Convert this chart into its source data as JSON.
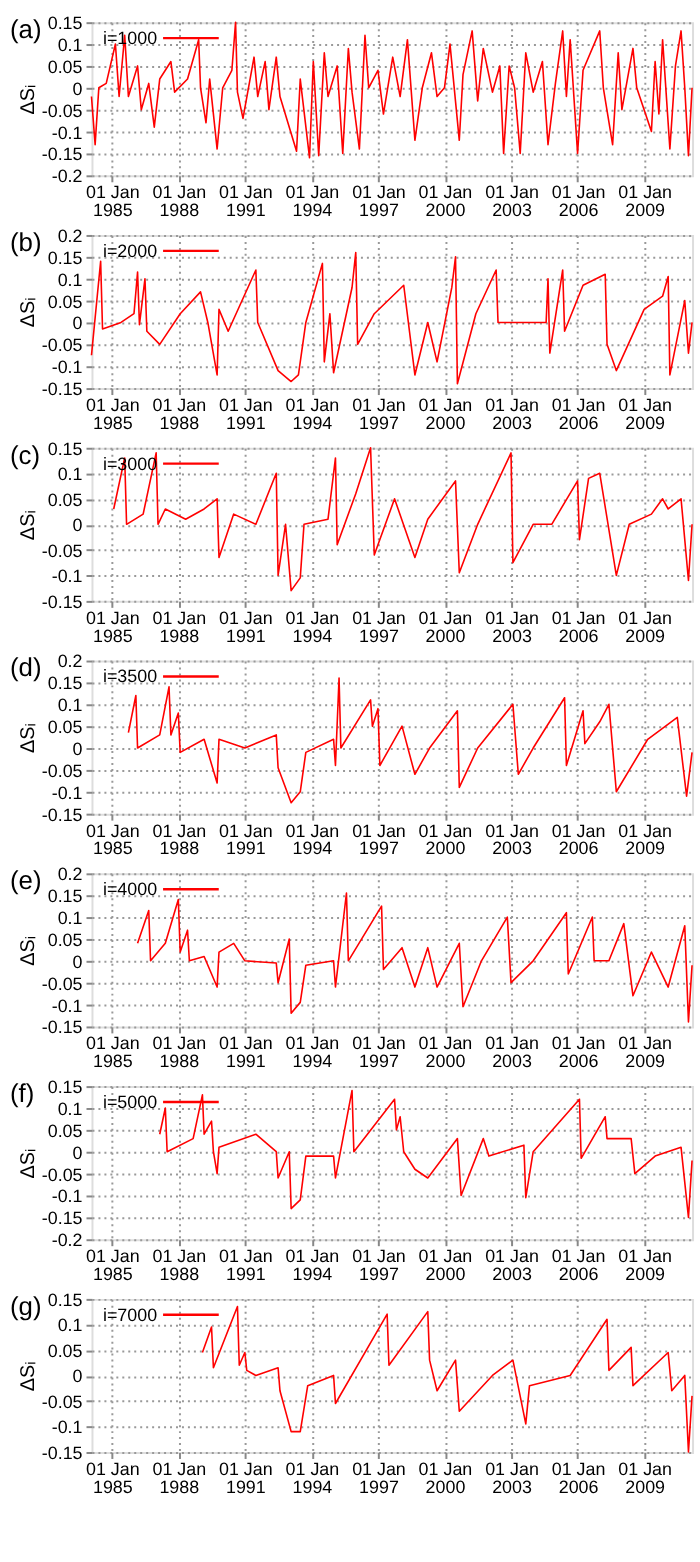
{
  "chart_data": [
    {
      "type": "line",
      "title": "(a)",
      "ylabel": "ΔSᵢ",
      "legend": "top left",
      "grid": true,
      "xlim": [
        "1984-02-01",
        "2011-03-01"
      ],
      "ylim": [
        -0.2,
        0.15
      ],
      "yticks": [
        -0.2,
        -0.15,
        -0.1,
        -0.05,
        0,
        0.05,
        0.1,
        0.15
      ],
      "xticks": [
        {
          "value": "1985-01-01",
          "label": "01 Jan\n1985"
        },
        {
          "value": "1988-01-01",
          "label": "01 Jan\n1988"
        },
        {
          "value": "1991-01-01",
          "label": "01 Jan\n1991"
        },
        {
          "value": "1994-01-01",
          "label": "01 Jan\n1994"
        },
        {
          "value": "1997-01-01",
          "label": "01 Jan\n1997"
        },
        {
          "value": "2000-01-01",
          "label": "01 Jan\n2000"
        },
        {
          "value": "2003-01-01",
          "label": "01 Jan\n2003"
        },
        {
          "value": "2006-01-01",
          "label": "01 Jan\n2006"
        },
        {
          "value": "2009-01-01",
          "label": "01 Jan\n2009"
        }
      ],
      "series": [
        {
          "name": "i=1000",
          "color": "#ff0000",
          "x": [
            "1984-02",
            "1984-04",
            "1984-06",
            "1984-10",
            "1985-03",
            "1985-05",
            "1985-08",
            "1985-10",
            "1986-03",
            "1986-05",
            "1986-09",
            "1986-12",
            "1987-03",
            "1987-09",
            "1987-11",
            "1988-06",
            "1988-12",
            "1989-01",
            "1989-04",
            "1989-06",
            "1989-10",
            "1990-01",
            "1990-06",
            "1990-08",
            "1990-09",
            "1990-12",
            "1991-06",
            "1991-08",
            "1991-12",
            "1992-02",
            "1992-06",
            "1992-08",
            "1993-05",
            "1993-07",
            "1993-12",
            "1994-02",
            "1994-05",
            "1994-08",
            "1994-10",
            "1995-03",
            "1995-06",
            "1995-09",
            "1995-11",
            "1996-03",
            "1996-06",
            "1996-08",
            "1997-01",
            "1997-04",
            "1997-09",
            "1998-01",
            "1998-05",
            "1998-09",
            "1999-01",
            "1999-06",
            "1999-09",
            "2000-01",
            "2000-04",
            "2000-09",
            "2000-11",
            "2001-04",
            "2001-07",
            "2001-10",
            "2002-03",
            "2002-07",
            "2002-09",
            "2002-12",
            "2003-03",
            "2003-06",
            "2003-09",
            "2004-01",
            "2004-06",
            "2004-09",
            "2005-01",
            "2005-05",
            "2005-07",
            "2005-09",
            "2006-01",
            "2006-04",
            "2007-01",
            "2007-03",
            "2007-08",
            "2007-11",
            "2008-01",
            "2008-07",
            "2008-09",
            "2009-05",
            "2009-07",
            "2009-09",
            "2009-11",
            "2010-03",
            "2010-06",
            "2010-09",
            "2010-11",
            "2011-01",
            "2011-03"
          ],
          "values": [
            -0.02,
            -0.13,
            0.0,
            0.01,
            0.1,
            -0.02,
            0.12,
            -0.02,
            0.05,
            -0.05,
            0.01,
            -0.09,
            0.02,
            0.06,
            -0.01,
            0.02,
            0.11,
            0.0,
            -0.08,
            0.02,
            -0.14,
            0.0,
            0.04,
            0.15,
            -0.01,
            -0.07,
            0.07,
            -0.02,
            0.06,
            -0.05,
            0.07,
            -0.02,
            -0.145,
            0.02,
            -0.16,
            0.06,
            -0.155,
            0.08,
            -0.02,
            0.05,
            -0.15,
            0.09,
            -0.01,
            -0.14,
            0.12,
            0.0,
            0.04,
            -0.06,
            0.07,
            -0.02,
            0.11,
            -0.12,
            0.0,
            0.08,
            -0.02,
            0.0,
            0.1,
            -0.12,
            0.03,
            0.13,
            -0.03,
            0.09,
            -0.01,
            0.05,
            -0.15,
            0.05,
            0.0,
            -0.15,
            0.08,
            -0.01,
            0.06,
            -0.13,
            0.01,
            0.13,
            -0.02,
            0.11,
            -0.15,
            0.04,
            0.13,
            0.0,
            -0.13,
            0.08,
            -0.05,
            0.09,
            0.0,
            -0.1,
            0.06,
            -0.06,
            0.11,
            -0.14,
            0.05,
            0.13,
            0.0,
            -0.155,
            0.0
          ]
        }
      ]
    },
    {
      "type": "line",
      "title": "(b)",
      "ylabel": "ΔSᵢ",
      "legend": "top left",
      "grid": true,
      "xlim": [
        "1984-02-01",
        "2011-03-01"
      ],
      "ylim": [
        -0.15,
        0.2
      ],
      "yticks": [
        -0.15,
        -0.1,
        -0.05,
        0,
        0.05,
        0.1,
        0.15,
        0.2
      ],
      "xticks": [
        {
          "value": "1985-01-01",
          "label": "01 Jan\n1985"
        },
        {
          "value": "1988-01-01",
          "label": "01 Jan\n1988"
        },
        {
          "value": "1991-01-01",
          "label": "01 Jan\n1991"
        },
        {
          "value": "1994-01-01",
          "label": "01 Jan\n1994"
        },
        {
          "value": "1997-01-01",
          "label": "01 Jan\n1997"
        },
        {
          "value": "2000-01-01",
          "label": "01 Jan\n2000"
        },
        {
          "value": "2003-01-01",
          "label": "01 Jan\n2003"
        },
        {
          "value": "2006-01-01",
          "label": "01 Jan\n2006"
        },
        {
          "value": "2009-01-01",
          "label": "01 Jan\n2009"
        }
      ],
      "series": [
        {
          "name": "i=2000",
          "color": "#ff0000",
          "x": [
            "1984-02",
            "1984-07",
            "1984-08",
            "1985-06",
            "1986-01",
            "1986-03",
            "1986-04",
            "1986-07",
            "1986-08",
            "1987-03",
            "1988-02",
            "1989-01",
            "1989-05",
            "1989-10",
            "1989-11",
            "1990-04",
            "1991-07",
            "1991-08",
            "1992-07",
            "1993-02",
            "1993-06",
            "1993-10",
            "1994-07",
            "1994-08",
            "1994-11",
            "1995-01",
            "1995-11",
            "1996-01",
            "1996-02",
            "1996-11",
            "1998-03",
            "1998-09",
            "1999-04",
            "1999-09",
            "2000-05",
            "2000-07",
            "2000-08",
            "2001-06",
            "2002-05",
            "2002-06",
            "2004-08",
            "2004-09",
            "2004-10",
            "2005-05",
            "2005-06",
            "2006-04",
            "2007-04",
            "2007-05",
            "2007-10",
            "2009-01",
            "2009-11",
            "2010-02",
            "2010-03",
            "2010-11",
            "2011-01",
            "2011-03"
          ],
          "values": [
            -0.075,
            0.14,
            -0.015,
            0.0,
            0.02,
            0.115,
            -0.005,
            0.1,
            -0.02,
            -0.05,
            0.02,
            0.07,
            0.0,
            -0.12,
            0.03,
            -0.02,
            0.12,
            0.0,
            -0.11,
            -0.135,
            -0.12,
            0.0,
            0.135,
            -0.09,
            0.02,
            -0.115,
            0.08,
            0.16,
            -0.05,
            0.02,
            0.085,
            -0.12,
            0.0,
            -0.09,
            0.08,
            0.15,
            -0.14,
            0.02,
            0.12,
            0.0,
            0.0,
            0.1,
            -0.07,
            0.12,
            -0.02,
            0.085,
            0.11,
            -0.05,
            -0.11,
            0.03,
            0.06,
            0.105,
            -0.12,
            0.05,
            -0.07,
            0.0
          ]
        }
      ]
    },
    {
      "type": "line",
      "title": "(c)",
      "ylabel": "ΔSᵢ",
      "legend": "top left",
      "grid": true,
      "xlim": [
        "1984-02-01",
        "2011-03-01"
      ],
      "ylim": [
        -0.15,
        0.15
      ],
      "yticks": [
        -0.15,
        -0.1,
        -0.05,
        0,
        0.05,
        0.1,
        0.15
      ],
      "xticks": [
        {
          "value": "1985-01-01",
          "label": "01 Jan\n1985"
        },
        {
          "value": "1988-01-01",
          "label": "01 Jan\n1988"
        },
        {
          "value": "1991-01-01",
          "label": "01 Jan\n1991"
        },
        {
          "value": "1994-01-01",
          "label": "01 Jan\n1994"
        },
        {
          "value": "1997-01-01",
          "label": "01 Jan\n1997"
        },
        {
          "value": "2000-01-01",
          "label": "01 Jan\n2000"
        },
        {
          "value": "2003-01-01",
          "label": "01 Jan\n2003"
        },
        {
          "value": "2006-01-01",
          "label": "01 Jan\n2006"
        },
        {
          "value": "2009-01-01",
          "label": "01 Jan\n2009"
        }
      ],
      "series": [
        {
          "name": "i=3000",
          "color": "#ff0000",
          "x": [
            "1985-02",
            "1985-08",
            "1985-09",
            "1986-06",
            "1987-01",
            "1987-02",
            "1987-06",
            "1988-05",
            "1989-03",
            "1989-10",
            "1989-11",
            "1990-07",
            "1991-07",
            "1992-06",
            "1992-07",
            "1992-11",
            "1993-02",
            "1993-07",
            "1993-09",
            "1994-10",
            "1995-02",
            "1995-03",
            "1996-01",
            "1996-09",
            "1996-11",
            "1997-10",
            "1998-09",
            "1999-04",
            "2000-07",
            "2000-09",
            "2001-07",
            "2003-01",
            "2003-02",
            "2004-01",
            "2004-11",
            "2006-01",
            "2006-02",
            "2006-07",
            "2007-01",
            "2007-10",
            "2008-05",
            "2009-05",
            "2009-11",
            "2010-02",
            "2010-09",
            "2011-01",
            "2011-03"
          ],
          "values": [
            0.03,
            0.13,
            0.0,
            0.02,
            0.14,
            0.0,
            0.03,
            0.01,
            0.03,
            0.05,
            -0.065,
            0.02,
            0.0,
            0.1,
            -0.1,
            0.0,
            -0.13,
            -0.105,
            0.0,
            0.01,
            0.13,
            -0.04,
            0.06,
            0.15,
            -0.06,
            0.05,
            -0.065,
            0.01,
            0.085,
            -0.095,
            0.0,
            0.14,
            -0.075,
            0.0,
            0.0,
            0.085,
            -0.03,
            0.09,
            0.1,
            -0.1,
            0.0,
            0.02,
            0.05,
            0.03,
            0.05,
            -0.11,
            0.0
          ]
        }
      ]
    },
    {
      "type": "line",
      "title": "(d)",
      "ylabel": "ΔSᵢ",
      "legend": "top left",
      "grid": true,
      "xlim": [
        "1984-02-01",
        "2011-03-01"
      ],
      "ylim": [
        -0.15,
        0.2
      ],
      "yticks": [
        -0.15,
        -0.1,
        -0.05,
        0,
        0.05,
        0.1,
        0.15,
        0.2
      ],
      "xticks": [
        {
          "value": "1985-01-01",
          "label": "01 Jan\n1985"
        },
        {
          "value": "1988-01-01",
          "label": "01 Jan\n1988"
        },
        {
          "value": "1991-01-01",
          "label": "01 Jan\n1991"
        },
        {
          "value": "1994-01-01",
          "label": "01 Jan\n1994"
        },
        {
          "value": "1997-01-01",
          "label": "01 Jan\n1997"
        },
        {
          "value": "2000-01-01",
          "label": "01 Jan\n2000"
        },
        {
          "value": "2003-01-01",
          "label": "01 Jan\n2003"
        },
        {
          "value": "2006-01-01",
          "label": "01 Jan\n2006"
        },
        {
          "value": "2009-01-01",
          "label": "01 Jan\n2009"
        }
      ],
      "series": [
        {
          "name": "i=3500",
          "color": "#ff0000",
          "x": [
            "1985-10",
            "1986-02",
            "1986-03",
            "1987-03",
            "1987-08",
            "1987-09",
            "1988-01",
            "1988-02",
            "1989-03",
            "1989-10",
            "1989-11",
            "1991-01",
            "1992-06",
            "1992-07",
            "1993-02",
            "1993-07",
            "1993-10",
            "1995-01",
            "1995-02",
            "1995-04",
            "1995-05",
            "1996-09",
            "1996-10",
            "1997-01",
            "1997-02",
            "1998-02",
            "1998-09",
            "1999-05",
            "2000-08",
            "2000-09",
            "2001-07",
            "2003-02",
            "2003-05",
            "2004-01",
            "2005-06",
            "2005-07",
            "2006-04",
            "2006-05",
            "2007-01",
            "2007-06",
            "2007-10",
            "2009-03",
            "2010-07",
            "2010-12",
            "2011-03"
          ],
          "values": [
            0.035,
            0.12,
            0.0,
            0.03,
            0.14,
            0.03,
            0.08,
            -0.01,
            0.02,
            -0.08,
            0.02,
            0.0,
            0.03,
            -0.045,
            -0.125,
            -0.1,
            -0.01,
            0.02,
            -0.04,
            0.16,
            0.0,
            0.11,
            0.05,
            0.09,
            -0.04,
            0.05,
            -0.06,
            0.0,
            0.085,
            -0.09,
            0.0,
            0.1,
            -0.06,
            0.0,
            0.115,
            -0.04,
            0.085,
            0.01,
            0.06,
            0.1,
            -0.1,
            0.02,
            0.07,
            -0.11,
            -0.01
          ]
        }
      ]
    },
    {
      "type": "line",
      "title": "(e)",
      "ylabel": "ΔSᵢ",
      "legend": "top left",
      "grid": true,
      "xlim": [
        "1984-02-01",
        "2011-03-01"
      ],
      "ylim": [
        -0.15,
        0.2
      ],
      "yticks": [
        -0.15,
        -0.1,
        -0.05,
        0,
        0.05,
        0.1,
        0.15,
        0.2
      ],
      "xticks": [
        {
          "value": "1985-01-01",
          "label": "01 Jan\n1985"
        },
        {
          "value": "1988-01-01",
          "label": "01 Jan\n1988"
        },
        {
          "value": "1991-01-01",
          "label": "01 Jan\n1991"
        },
        {
          "value": "1994-01-01",
          "label": "01 Jan\n1994"
        },
        {
          "value": "1997-01-01",
          "label": "01 Jan\n1997"
        },
        {
          "value": "2000-01-01",
          "label": "01 Jan\n2000"
        },
        {
          "value": "2003-01-01",
          "label": "01 Jan\n2003"
        },
        {
          "value": "2006-01-01",
          "label": "01 Jan\n2006"
        },
        {
          "value": "2009-01-01",
          "label": "01 Jan\n2009"
        }
      ],
      "series": [
        {
          "name": "i=4000",
          "color": "#ff0000",
          "x": [
            "1986-03",
            "1986-09",
            "1986-10",
            "1987-06",
            "1988-01",
            "1988-02",
            "1988-06",
            "1988-07",
            "1989-03",
            "1989-10",
            "1989-11",
            "1990-07",
            "1991-01",
            "1992-06",
            "1992-07",
            "1993-01",
            "1993-02",
            "1993-07",
            "1993-10",
            "1995-01",
            "1995-02",
            "1995-08",
            "1995-09",
            "1997-03",
            "1997-04",
            "1998-02",
            "1998-09",
            "1999-04",
            "1999-09",
            "2000-09",
            "2000-11",
            "2001-09",
            "2002-11",
            "2003-01",
            "2004-01",
            "2005-07",
            "2005-08",
            "2006-09",
            "2006-10",
            "2007-06",
            "2008-02",
            "2008-07",
            "2009-05",
            "2010-02",
            "2010-11",
            "2011-01",
            "2011-03"
          ],
          "values": [
            0.04,
            0.115,
            0.0,
            0.04,
            0.14,
            0.02,
            0.07,
            0.0,
            0.01,
            -0.06,
            0.02,
            0.04,
            0.0,
            -0.005,
            -0.05,
            0.05,
            -0.12,
            -0.095,
            -0.01,
            0.0,
            -0.06,
            0.155,
            0.0,
            0.125,
            -0.02,
            0.03,
            -0.06,
            0.03,
            -0.06,
            0.04,
            -0.105,
            0.0,
            0.1,
            -0.05,
            0.0,
            0.11,
            -0.03,
            0.1,
            0.0,
            0.0,
            0.085,
            -0.08,
            0.02,
            -0.06,
            0.08,
            -0.14,
            -0.01
          ]
        }
      ]
    },
    {
      "type": "line",
      "title": "(f)",
      "ylabel": "ΔSᵢ",
      "legend": "top left",
      "grid": true,
      "xlim": [
        "1984-02-01",
        "2011-03-01"
      ],
      "ylim": [
        -0.2,
        0.15
      ],
      "yticks": [
        -0.2,
        -0.15,
        -0.1,
        -0.05,
        0,
        0.05,
        0.1,
        0.15
      ],
      "xticks": [
        {
          "value": "1985-01-01",
          "label": "01 Jan\n1985"
        },
        {
          "value": "1988-01-01",
          "label": "01 Jan\n1988"
        },
        {
          "value": "1991-01-01",
          "label": "01 Jan\n1991"
        },
        {
          "value": "1994-01-01",
          "label": "01 Jan\n1994"
        },
        {
          "value": "1997-01-01",
          "label": "01 Jan\n1997"
        },
        {
          "value": "2000-01-01",
          "label": "01 Jan\n2000"
        },
        {
          "value": "2003-01-01",
          "label": "01 Jan\n2003"
        },
        {
          "value": "2006-01-01",
          "label": "01 Jan\n2006"
        },
        {
          "value": "2009-01-01",
          "label": "01 Jan\n2009"
        }
      ],
      "series": [
        {
          "name": "i=5000",
          "color": "#ff0000",
          "x": [
            "1987-03",
            "1987-06",
            "1987-07",
            "1988-09",
            "1989-02",
            "1989-03",
            "1989-07",
            "1989-08",
            "1989-10",
            "1989-11",
            "1991-07",
            "1992-06",
            "1992-07",
            "1993-01",
            "1993-02",
            "1993-07",
            "1993-10",
            "1995-01",
            "1995-02",
            "1995-11",
            "1995-12",
            "1997-10",
            "1997-11",
            "1998-01",
            "1998-03",
            "1998-09",
            "1999-04",
            "2000-08",
            "2000-10",
            "2001-10",
            "2002-01",
            "2003-08",
            "2003-09",
            "2004-01",
            "2006-02",
            "2006-03",
            "2007-04",
            "2007-05",
            "2008-06",
            "2008-08",
            "2009-07",
            "2010-09",
            "2011-01",
            "2011-03"
          ],
          "values": [
            0.04,
            0.1,
            0.0,
            0.03,
            0.13,
            0.04,
            0.07,
            0.0,
            -0.05,
            0.01,
            0.04,
            0.0,
            -0.06,
            0.0,
            -0.13,
            -0.11,
            -0.01,
            -0.01,
            -0.06,
            0.14,
            0.0,
            0.12,
            0.05,
            0.08,
            0.0,
            -0.04,
            -0.06,
            0.03,
            -0.1,
            0.03,
            -0.01,
            0.015,
            -0.105,
            0.0,
            0.12,
            -0.015,
            0.08,
            0.03,
            0.03,
            -0.05,
            -0.01,
            0.01,
            -0.15,
            -0.02
          ]
        }
      ]
    },
    {
      "type": "line",
      "title": "(g)",
      "ylabel": "ΔSᵢ",
      "legend": "top left",
      "grid": true,
      "xlim": [
        "1984-02-01",
        "2011-03-01"
      ],
      "ylim": [
        -0.15,
        0.15
      ],
      "yticks": [
        -0.15,
        -0.1,
        -0.05,
        0,
        0.05,
        0.1,
        0.15
      ],
      "xticks": [
        {
          "value": "1985-01-01",
          "label": "01 Jan\n1985"
        },
        {
          "value": "1988-01-01",
          "label": "01 Jan\n1988"
        },
        {
          "value": "1991-01-01",
          "label": "01 Jan\n1991"
        },
        {
          "value": "1994-01-01",
          "label": "01 Jan\n1994"
        },
        {
          "value": "1997-01-01",
          "label": "01 Jan\n1997"
        },
        {
          "value": "2000-01-01",
          "label": "01 Jan\n2000"
        },
        {
          "value": "2003-01-01",
          "label": "01 Jan\n2003"
        },
        {
          "value": "2006-01-01",
          "label": "01 Jan\n2006"
        },
        {
          "value": "2009-01-01",
          "label": "01 Jan\n2009"
        }
      ],
      "series": [
        {
          "name": "i=7000",
          "color": "#ff0000",
          "x": [
            "1989-02",
            "1989-07",
            "1989-08",
            "1990-09",
            "1990-10",
            "1991-01",
            "1991-02",
            "1991-07",
            "1992-07",
            "1992-08",
            "1993-02",
            "1993-07",
            "1993-11",
            "1995-01",
            "1995-02",
            "1997-06",
            "1997-07",
            "1999-04",
            "1999-05",
            "1999-09",
            "2000-07",
            "2000-09",
            "2002-03",
            "2003-02",
            "2003-09",
            "2003-11",
            "2005-09",
            "2007-05",
            "2007-06",
            "2008-06",
            "2008-07",
            "2010-02",
            "2010-04",
            "2010-11",
            "2011-01",
            "2011-03"
          ],
          "values": [
            0.045,
            0.095,
            0.015,
            0.135,
            0.02,
            0.045,
            0.01,
            0.0,
            0.015,
            -0.03,
            -0.11,
            -0.11,
            -0.02,
            0.0,
            -0.055,
            0.12,
            0.02,
            0.125,
            0.03,
            -0.03,
            0.03,
            -0.07,
            0.0,
            0.03,
            -0.095,
            -0.02,
            0.0,
            0.11,
            0.01,
            0.055,
            -0.02,
            0.045,
            -0.03,
            0.0,
            -0.15,
            -0.04
          ]
        }
      ]
    }
  ]
}
